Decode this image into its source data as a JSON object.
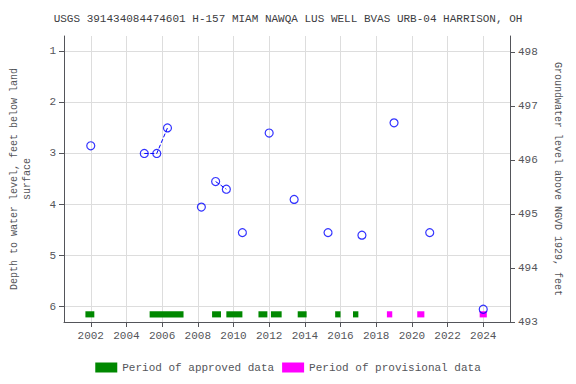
{
  "chart_data": {
    "type": "scatter",
    "title": "USGS 391434084474601 H-157 MIAM NAWQA LUS WELL BVAS URB-04 HARRISON, OH",
    "y_label": "Depth to water level, feet below land\nsurface",
    "y2_label": "Groundwater level above NGVD 1929, feet",
    "xlim": [
      2000.5,
      2025.5
    ],
    "xticks": [
      2002,
      2004,
      2006,
      2008,
      2010,
      2012,
      2014,
      2016,
      2018,
      2020,
      2022,
      2024
    ],
    "ylim": [
      6.3,
      0.7
    ],
    "yticks": [
      1,
      2,
      3,
      4,
      5,
      6
    ],
    "y2lim": [
      493,
      498.3
    ],
    "y2ticks": [
      493,
      494,
      495,
      496,
      497,
      498
    ],
    "grid": true,
    "legend": "bottom",
    "series": [
      {
        "type": "scatter",
        "color": "blue",
        "marker": "open_circle",
        "x": [
          2002.0,
          2005.0,
          2005.7,
          2006.3,
          2008.2,
          2009.0,
          2009.6,
          2010.5,
          2012.0,
          2013.4,
          2015.3,
          2017.2,
          2019.0,
          2021.0,
          2024.0
        ],
        "values": [
          2.85,
          3.0,
          3.0,
          2.5,
          4.05,
          3.55,
          3.7,
          4.55,
          2.6,
          3.9,
          4.55,
          4.6,
          2.4,
          4.55,
          6.05
        ]
      },
      {
        "type": "line",
        "color": "blue",
        "line_style": "dashed",
        "x": [
          2005.0,
          2005.7,
          2006.3
        ],
        "values": [
          3.0,
          3.0,
          2.5
        ]
      },
      {
        "type": "line",
        "color": "blue",
        "line_style": "dashed",
        "x": [
          2009.0,
          2009.6
        ],
        "values": [
          3.55,
          3.7
        ]
      },
      {
        "type": "bar",
        "orientation": "horizontal",
        "name": "Period of approved data",
        "color": "#008800",
        "y": 6.15,
        "height": 0.12,
        "intervals": [
          [
            2001.7,
            2002.2
          ],
          [
            2005.3,
            2007.2
          ],
          [
            2008.8,
            2009.3
          ],
          [
            2009.6,
            2010.5
          ],
          [
            2011.4,
            2011.9
          ],
          [
            2012.1,
            2012.7
          ],
          [
            2013.6,
            2014.1
          ],
          [
            2015.7,
            2016.0
          ],
          [
            2016.7,
            2017.0
          ]
        ]
      },
      {
        "type": "bar",
        "orientation": "horizontal",
        "name": "Period of provisional data",
        "color": "#ff00ff",
        "y": 6.15,
        "height": 0.12,
        "intervals": [
          [
            2018.6,
            2018.9
          ],
          [
            2020.3,
            2020.7
          ],
          [
            2023.8,
            2024.2
          ]
        ]
      }
    ]
  }
}
